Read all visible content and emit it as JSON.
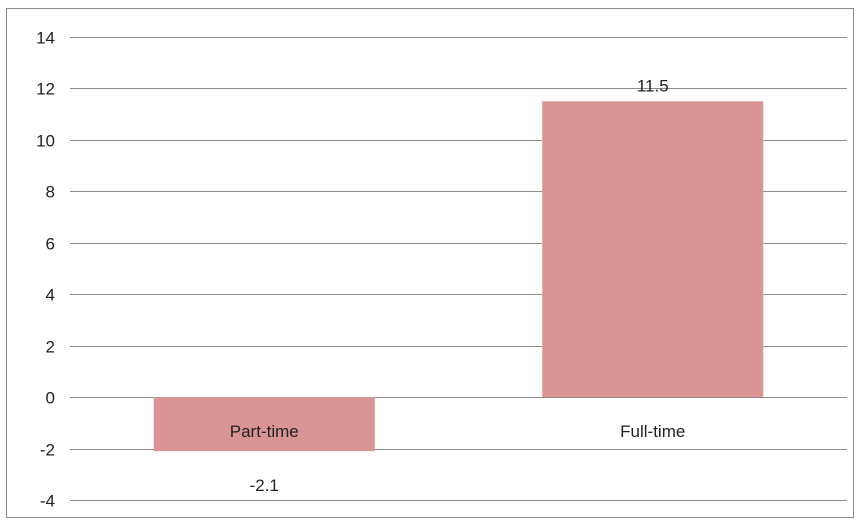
{
  "chart_data": {
    "type": "bar",
    "categories": [
      "Part-time",
      "Full-time"
    ],
    "values": [
      -2.1,
      11.5
    ],
    "value_labels": [
      "-2.1",
      "11.5"
    ],
    "title": "",
    "xlabel": "",
    "ylabel": "",
    "ylim": [
      -4,
      14
    ],
    "yticks": [
      "14",
      "12",
      "10",
      "8",
      "6",
      "4",
      "2",
      "0",
      "-2",
      "-4"
    ],
    "ytick_values": [
      14,
      12,
      10,
      8,
      6,
      4,
      2,
      0,
      -2,
      -4
    ],
    "grid": true,
    "legend": "none",
    "bar_color": "#d99594",
    "grid_color": "#8c8c8c",
    "text_color": "#222222"
  }
}
